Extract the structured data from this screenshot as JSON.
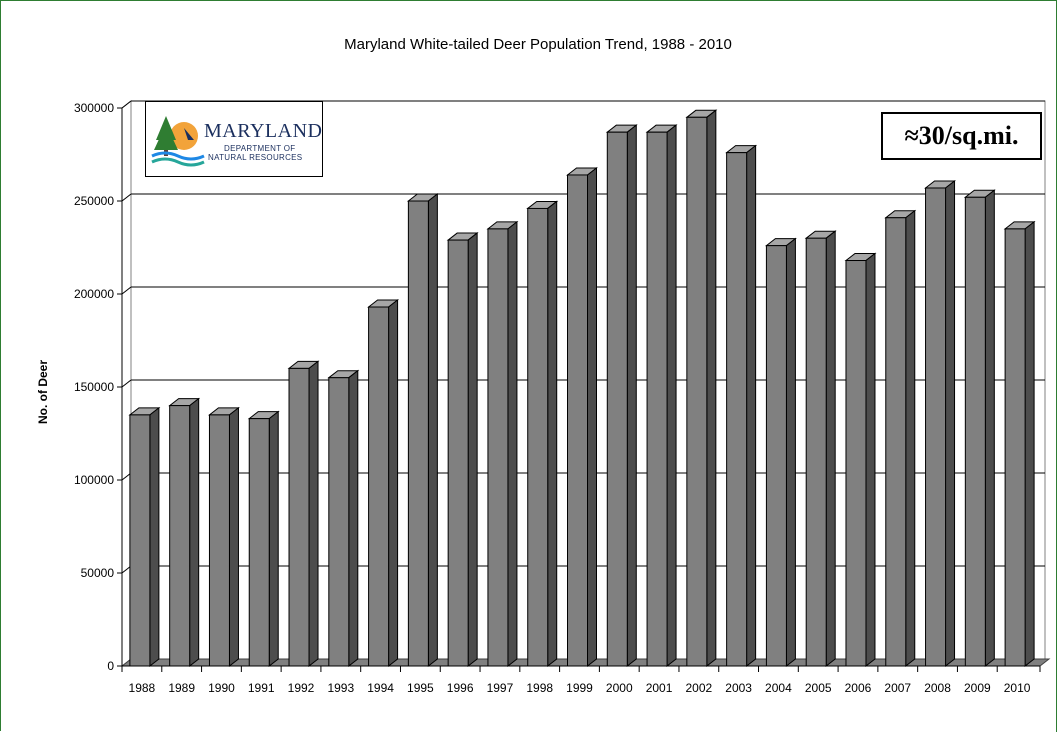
{
  "chart_data": {
    "type": "bar",
    "title": "Maryland White-tailed Deer Population Trend, 1988 - 2010",
    "xlabel": "",
    "ylabel": "No. of Deer",
    "ylim": [
      0,
      300000
    ],
    "yticks": [
      0,
      50000,
      100000,
      150000,
      200000,
      250000,
      300000
    ],
    "grid": true,
    "style": "3d-bar",
    "bar_color": "#808080",
    "categories": [
      "1988",
      "1989",
      "1990",
      "1991",
      "1992",
      "1993",
      "1994",
      "1995",
      "1996",
      "1997",
      "1998",
      "1999",
      "2000",
      "2001",
      "2002",
      "2003",
      "2004",
      "2005",
      "2006",
      "2007",
      "2008",
      "2009",
      "2010"
    ],
    "values": [
      135000,
      140000,
      135000,
      133000,
      160000,
      155000,
      193000,
      250000,
      229000,
      235000,
      246000,
      264000,
      287000,
      287000,
      295000,
      276000,
      226000,
      230000,
      218000,
      241000,
      257000,
      252000,
      235000
    ]
  },
  "logo": {
    "name": "MARYLAND",
    "sub_line1": "DEPARTMENT OF",
    "sub_line2": "NATURAL RESOURCES"
  },
  "annotation": {
    "density": "≈30/sq.mi."
  }
}
